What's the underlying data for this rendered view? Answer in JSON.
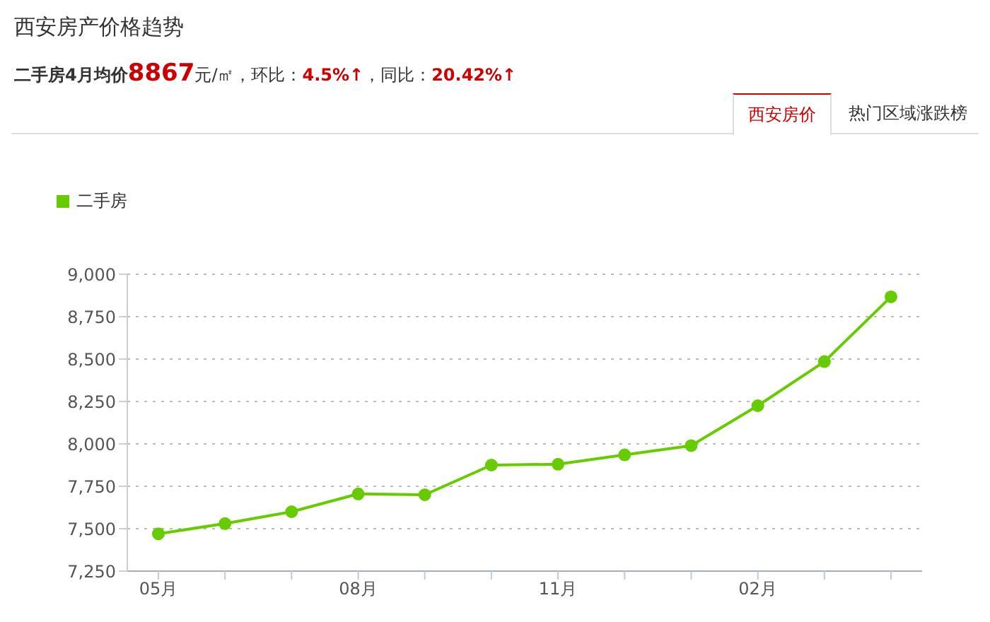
{
  "chart_data": {
    "type": "line",
    "title": "西安房产价格趋势",
    "subtitle": "二手房4月均价8867元/㎡，环比：4.5%↑，同比：20.42%↑",
    "annotations": [
      "西安房价",
      "热门区域涨跌榜"
    ],
    "categories": [
      "05月",
      null,
      null,
      "08月",
      null,
      null,
      "11月",
      null,
      null,
      "02月",
      null,
      null
    ],
    "series": [
      {
        "name": "二手房",
        "color": "#66cc00",
        "values": [
          7470,
          7530,
          7600,
          7705,
          7700,
          7875,
          7880,
          7935,
          7990,
          8225,
          8485,
          8867
        ]
      }
    ],
    "ylim": [
      7250,
      9000
    ],
    "yticks": [
      {
        "value": 7250,
        "label": "7,250"
      },
      {
        "value": 7500,
        "label": "7,500"
      },
      {
        "value": 7750,
        "label": "7,750"
      },
      {
        "value": 8000,
        "label": "8,000"
      },
      {
        "value": 8250,
        "label": "8,250"
      },
      {
        "value": 8500,
        "label": "8,500"
      },
      {
        "value": 8750,
        "label": "8,750"
      },
      {
        "value": 9000,
        "label": "9,000"
      }
    ],
    "grid": "y",
    "legend": "top left",
    "marker": "circle",
    "line_style": "solid"
  }
}
